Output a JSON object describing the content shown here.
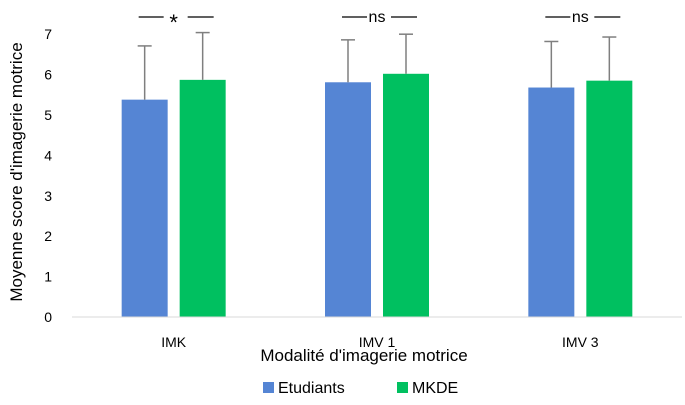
{
  "chart_data": {
    "type": "bar",
    "xlabel": "Modalité d'imagerie motrice",
    "ylabel": "Moyenne score d'imagerie motrice",
    "ylim": [
      0,
      7
    ],
    "yticks": [
      0,
      1,
      2,
      3,
      4,
      5,
      6,
      7
    ],
    "categories": [
      "IMK",
      "IMV 1",
      "IMV 3"
    ],
    "series": [
      {
        "name": "Etudiants",
        "color": "#5585d4",
        "values": [
          5.38,
          5.81,
          5.68
        ],
        "error": [
          1.33,
          1.05,
          1.14
        ]
      },
      {
        "name": "MKDE",
        "color": "#00c060",
        "values": [
          5.87,
          6.02,
          5.85
        ],
        "error": [
          1.17,
          0.98,
          1.08
        ]
      }
    ],
    "significance": [
      "*",
      "ns",
      "ns"
    ],
    "legend_position": "bottom",
    "grid": false
  }
}
